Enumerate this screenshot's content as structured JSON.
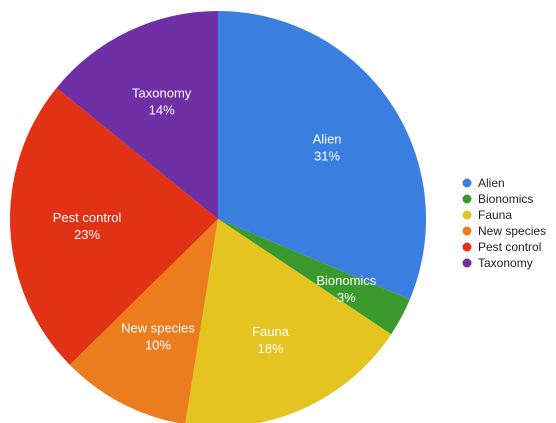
{
  "chart_data": {
    "type": "pie",
    "start_angle_deg": 0,
    "direction": "clockwise",
    "legend_placement": "right",
    "slices": [
      {
        "label": "Alien",
        "value": 31,
        "value_label": "31%",
        "color": "#3a7fe0"
      },
      {
        "label": "Bionomics",
        "value": 3,
        "value_label": "3%",
        "color": "#3a9a2e"
      },
      {
        "label": "Fauna",
        "value": 18,
        "value_label": "18%",
        "color": "#e5c320"
      },
      {
        "label": "New species",
        "value": 10,
        "value_label": "10%",
        "color": "#ec7d1e"
      },
      {
        "label": "Pest control",
        "value": 23,
        "value_label": "23%",
        "color": "#e23216"
      },
      {
        "label": "Taxonomy",
        "value": 14,
        "value_label": "14%",
        "color": "#6f2fa5"
      }
    ]
  }
}
